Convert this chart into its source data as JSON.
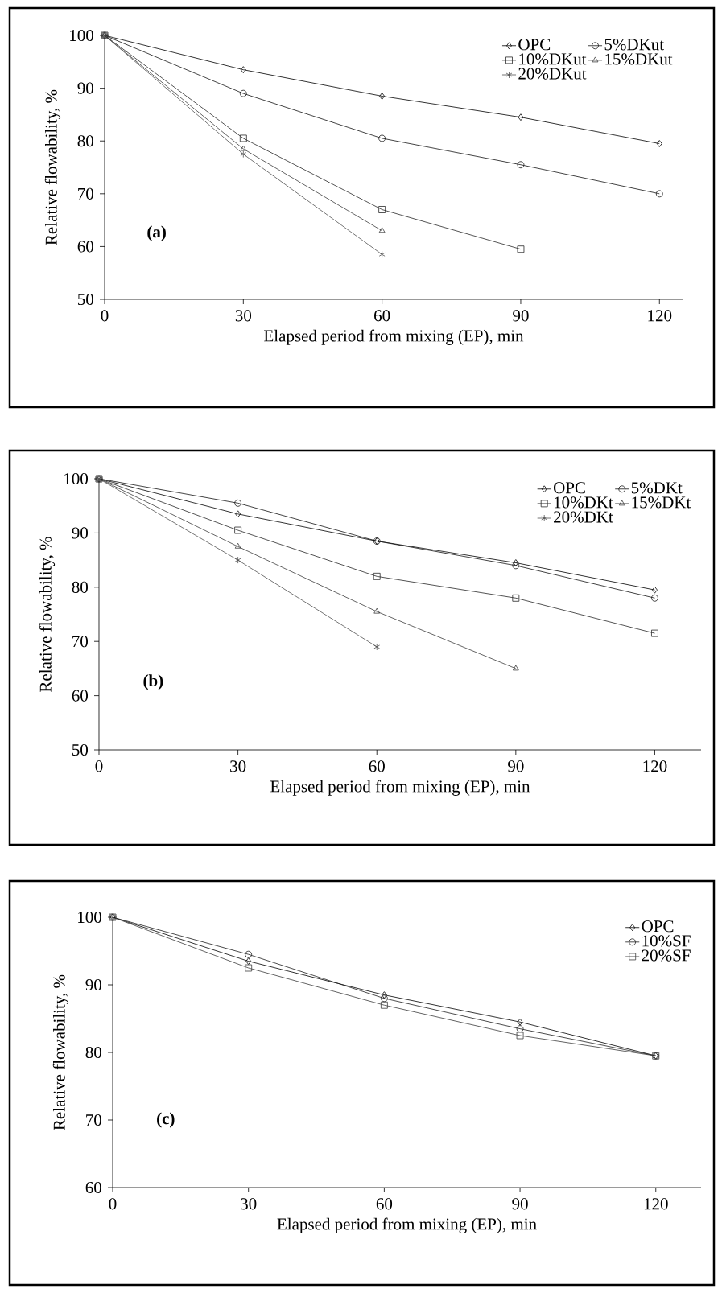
{
  "chart_data": [
    {
      "type": "line",
      "xlabel": "Elapsed period from mixing (EP), min",
      "ylabel": "Relative flowability, %",
      "annotations": [
        "(a)"
      ],
      "x": [
        0,
        30,
        60,
        90,
        120
      ],
      "xlim": [
        0,
        125
      ],
      "ylim": [
        50,
        100
      ],
      "xticks": [
        0,
        30,
        60,
        90,
        120
      ],
      "yticks": [
        50,
        60,
        70,
        80,
        90,
        100
      ],
      "legend": "top right",
      "grid": false,
      "line_style": "solid",
      "series": [
        {
          "name": "OPC",
          "color": "#000000",
          "marker": "diamond",
          "values": [
            100,
            93.5,
            88.5,
            84.5,
            79.5
          ]
        },
        {
          "name": "5%DKut",
          "color": "#141414",
          "marker": "circle",
          "values": [
            100,
            89,
            80.5,
            75.5,
            70
          ]
        },
        {
          "name": "10%DKut",
          "color": "#282828",
          "marker": "square",
          "values": [
            100,
            80.5,
            67,
            59.5,
            null
          ]
        },
        {
          "name": "15%DKut",
          "color": "#3c3c3c",
          "marker": "triangle",
          "values": [
            100,
            78.5,
            63,
            null,
            null
          ]
        },
        {
          "name": "20%DKut",
          "color": "#505050",
          "marker": "cross",
          "values": [
            100,
            77.5,
            58.5,
            null,
            null
          ]
        }
      ]
    },
    {
      "type": "line",
      "xlabel": "Elapsed period from mixing (EP), min",
      "ylabel": "Relative flowability, %",
      "annotations": [
        "(b)"
      ],
      "x": [
        0,
        30,
        60,
        90,
        120
      ],
      "xlim": [
        0,
        130
      ],
      "ylim": [
        50,
        100
      ],
      "xticks": [
        0,
        30,
        60,
        90,
        120
      ],
      "yticks": [
        50,
        60,
        70,
        80,
        90,
        100
      ],
      "legend": "top right",
      "grid": false,
      "line_style": "solid",
      "series": [
        {
          "name": "OPC",
          "color": "#000000",
          "marker": "diamond",
          "values": [
            100,
            93.5,
            88.5,
            84.5,
            79.5
          ]
        },
        {
          "name": "5%DKt",
          "color": "#141414",
          "marker": "circle",
          "values": [
            100,
            95.5,
            88.5,
            84,
            78
          ]
        },
        {
          "name": "10%DKt",
          "color": "#282828",
          "marker": "square",
          "values": [
            100,
            90.5,
            82,
            78,
            71.5
          ]
        },
        {
          "name": "15%DKt",
          "color": "#3c3c3c",
          "marker": "triangle",
          "values": [
            100,
            87.5,
            75.5,
            65,
            null
          ]
        },
        {
          "name": "20%DKt",
          "color": "#505050",
          "marker": "cross",
          "values": [
            100,
            85,
            69,
            null,
            null
          ]
        }
      ]
    },
    {
      "type": "line",
      "xlabel": "Elapsed period from mixing (EP), min",
      "ylabel": "Relative flowability, %",
      "annotations": [
        "(c)"
      ],
      "x": [
        0,
        30,
        60,
        90,
        120
      ],
      "xlim": [
        0,
        130
      ],
      "ylim": [
        60,
        100
      ],
      "xticks": [
        0,
        30,
        60,
        90,
        120
      ],
      "yticks": [
        60,
        70,
        80,
        90,
        100
      ],
      "legend": "top right",
      "grid": false,
      "line_style": "solid",
      "series": [
        {
          "name": "OPC",
          "color": "#000000",
          "marker": "diamond",
          "values": [
            100,
            93.5,
            88.5,
            84.5,
            79.5
          ]
        },
        {
          "name": "10%SF",
          "color": "#1e1e1e",
          "marker": "circle",
          "values": [
            100,
            94.5,
            88,
            83.5,
            79.5
          ]
        },
        {
          "name": "20%SF",
          "color": "#3c3c3c",
          "marker": "square",
          "values": [
            100,
            92.5,
            87,
            82.5,
            79.5
          ]
        }
      ]
    }
  ]
}
